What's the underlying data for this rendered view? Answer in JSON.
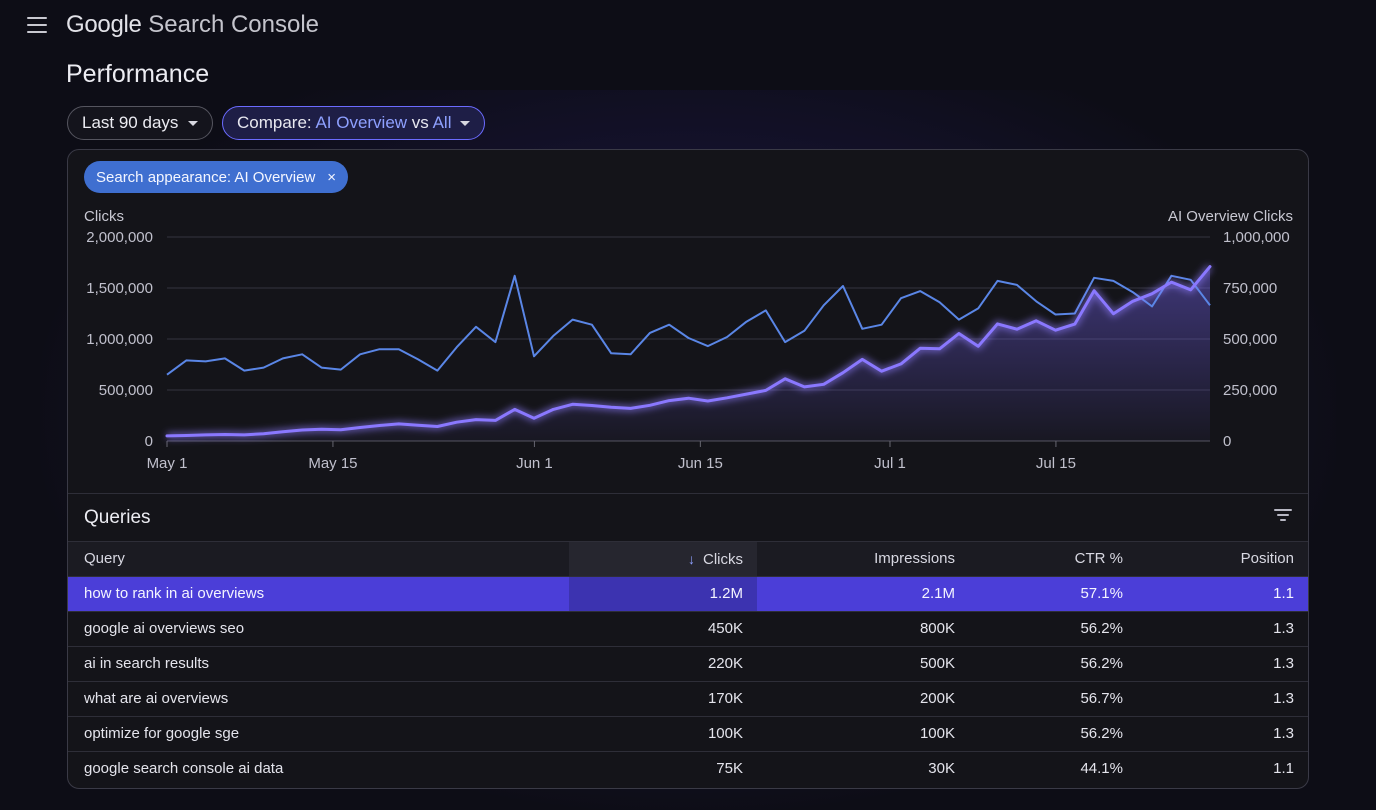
{
  "app": {
    "logo_google": "Google",
    "logo_rest": " Search Console",
    "menu_icon": "hamburger-menu-icon"
  },
  "page": {
    "title": "Performance"
  },
  "filters": {
    "date_range": "Last 90 days",
    "compare_prefix": "Compare: ",
    "compare_a": "AI Overview",
    "compare_vs": " vs ",
    "compare_b": "All",
    "search_appearance_chip": "Search appearance: AI Overview",
    "chip_close_glyph": "×"
  },
  "colors": {
    "accent": "#8ea0ff",
    "all_series": "#5a86e6",
    "ai_series": "#7b68ff",
    "selected_row": "#4b3ed8",
    "chip_blue": "#3f6fd0"
  },
  "chart_data": {
    "type": "line",
    "ylabel_left": "Clicks",
    "ylabel_right": "AI Overview Clicks",
    "ylim_left": [
      0,
      2000000
    ],
    "ylim_right": [
      0,
      1000000
    ],
    "yticks_left": [
      "2,000,000",
      "1,500,000",
      "1,000,000",
      "500,000",
      "0"
    ],
    "yticks_right": [
      "1,000,000",
      "750,000",
      "500,000",
      "250,000",
      "0"
    ],
    "xticks": [
      "May 1",
      "May 15",
      "Jun 1",
      "Jun 15",
      "Jul 1",
      "Jul 15"
    ],
    "x_start": "May 1",
    "x_end": "Jul 28",
    "grid": true,
    "series": [
      {
        "name": "Clicks",
        "axis": "left",
        "values": [
          650000,
          790000,
          780000,
          810000,
          690000,
          720000,
          810000,
          850000,
          720000,
          700000,
          850000,
          900000,
          900000,
          800000,
          690000,
          920000,
          1120000,
          970000,
          1620000,
          830000,
          1030000,
          1190000,
          1140000,
          860000,
          850000,
          1060000,
          1140000,
          1010000,
          930000,
          1020000,
          1170000,
          1280000,
          970000,
          1080000,
          1330000,
          1520000,
          1100000,
          1140000,
          1400000,
          1470000,
          1360000,
          1190000,
          1300000,
          1570000,
          1530000,
          1370000,
          1240000,
          1250000,
          1600000,
          1570000,
          1460000,
          1320000,
          1620000,
          1580000,
          1330000
        ]
      },
      {
        "name": "AI Overview Clicks",
        "axis": "right",
        "values": [
          25000,
          27000,
          30000,
          32000,
          30000,
          36000,
          45000,
          54000,
          58000,
          55000,
          66000,
          76000,
          84000,
          77000,
          71000,
          92000,
          105000,
          101000,
          155000,
          112000,
          155000,
          180000,
          174000,
          165000,
          160000,
          175000,
          198000,
          210000,
          196000,
          212000,
          230000,
          248000,
          305000,
          265000,
          278000,
          335000,
          400000,
          342000,
          378000,
          455000,
          452000,
          527000,
          464000,
          574000,
          548000,
          589000,
          543000,
          573000,
          737000,
          624000,
          685000,
          722000,
          779000,
          741000,
          855000
        ]
      }
    ]
  },
  "queries": {
    "title": "Queries",
    "filter_icon": "filter-icon",
    "sort_glyph": "↓",
    "columns": [
      "Query",
      "Clicks",
      "Impressions",
      "CTR %",
      "Position"
    ],
    "rows": [
      [
        "how to rank in ai overviews",
        "1.2M",
        "2.1M",
        "57.1%",
        "1.1"
      ],
      [
        "google ai overviews seo",
        "450K",
        "800K",
        "56.2%",
        "1.3"
      ],
      [
        "ai in search results",
        "220K",
        "500K",
        "56.2%",
        "1.3"
      ],
      [
        "what are ai overviews",
        "170K",
        "200K",
        "56.7%",
        "1.3"
      ],
      [
        "optimize for google sge",
        "100K",
        "100K",
        "56.2%",
        "1.3"
      ],
      [
        "google search console ai data",
        "75K",
        "30K",
        "44.1%",
        "1.1"
      ]
    ]
  }
}
